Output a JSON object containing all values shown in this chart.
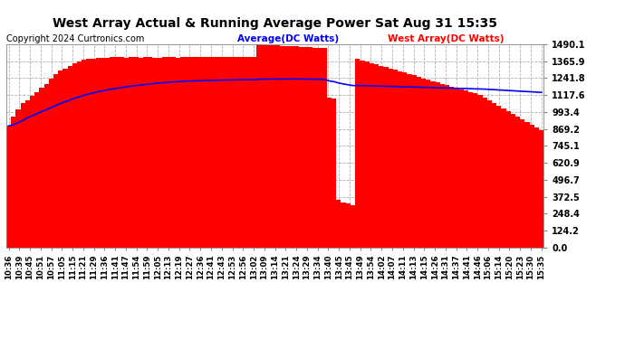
{
  "title": "West Array Actual & Running Average Power Sat Aug 31 15:35",
  "copyright": "Copyright 2024 Curtronics.com",
  "legend_average": "Average(DC Watts)",
  "legend_west": "West Array(DC Watts)",
  "ylabel_ticks": [
    0.0,
    124.2,
    248.4,
    372.5,
    496.7,
    620.9,
    745.1,
    869.2,
    993.4,
    1117.6,
    1241.8,
    1365.9,
    1490.1
  ],
  "bar_color": "#ff0000",
  "avg_line_color": "#0000ff",
  "west_label_color": "#ff0000",
  "background_color": "#ffffff",
  "grid_color": "#b0b0b0",
  "title_color": "#000000",
  "tick_labels": [
    "10:36",
    "10:39",
    "10:45",
    "10:51",
    "10:57",
    "11:05",
    "11:15",
    "11:21",
    "11:29",
    "11:36",
    "11:41",
    "11:47",
    "11:54",
    "11:59",
    "12:05",
    "12:13",
    "12:19",
    "12:27",
    "12:36",
    "12:41",
    "12:43",
    "12:53",
    "12:56",
    "13:02",
    "13:09",
    "13:14",
    "13:21",
    "13:24",
    "13:29",
    "13:34",
    "13:40",
    "13:45",
    "13:45",
    "13:49",
    "13:54",
    "14:02",
    "14:07",
    "14:11",
    "14:13",
    "14:15",
    "14:26",
    "14:31",
    "14:37",
    "14:41",
    "14:46",
    "15:06",
    "15:14",
    "15:20",
    "15:23",
    "15:30",
    "15:35"
  ],
  "power_values": [
    890,
    960,
    1010,
    1060,
    1080,
    1110,
    1140,
    1170,
    1200,
    1240,
    1270,
    1295,
    1310,
    1330,
    1350,
    1365,
    1375,
    1380,
    1385,
    1388,
    1390,
    1392,
    1393,
    1393,
    1393,
    1392,
    1393,
    1393,
    1392,
    1393,
    1393,
    1392,
    1392,
    1393,
    1393,
    1393,
    1392,
    1393,
    1393,
    1393,
    1393,
    1393,
    1393,
    1393,
    1393,
    1393,
    1393,
    1393,
    1393,
    1393,
    1393,
    1393,
    1393,
    1490,
    1488,
    1485,
    1482,
    1480,
    1478,
    1476,
    1474,
    1472,
    1470,
    1468,
    1466,
    1464,
    1462,
    1460,
    1100,
    1090,
    350,
    330,
    320,
    310,
    1380,
    1370,
    1360,
    1350,
    1340,
    1330,
    1320,
    1310,
    1300,
    1290,
    1280,
    1270,
    1260,
    1250,
    1240,
    1230,
    1220,
    1210,
    1200,
    1190,
    1180,
    1170,
    1160,
    1150,
    1140,
    1130,
    1120,
    1100,
    1080,
    1060,
    1040,
    1020,
    1000,
    980,
    960,
    940,
    920,
    900,
    880,
    860
  ],
  "avg_values": [
    890,
    900,
    915,
    930,
    950,
    965,
    980,
    995,
    1010,
    1025,
    1040,
    1055,
    1068,
    1080,
    1093,
    1105,
    1115,
    1125,
    1133,
    1141,
    1148,
    1155,
    1161,
    1167,
    1172,
    1177,
    1182,
    1186,
    1190,
    1194,
    1198,
    1202,
    1205,
    1208,
    1211,
    1213,
    1215,
    1217,
    1219,
    1220,
    1221,
    1222,
    1223,
    1224,
    1225,
    1226,
    1227,
    1227,
    1228,
    1228,
    1229,
    1229,
    1229,
    1232,
    1233,
    1233,
    1234,
    1234,
    1234,
    1234,
    1235,
    1235,
    1234,
    1234,
    1233,
    1232,
    1232,
    1231,
    1220,
    1215,
    1205,
    1198,
    1192,
    1186,
    1187,
    1186,
    1185,
    1184,
    1183,
    1182,
    1181,
    1180,
    1179,
    1178,
    1177,
    1176,
    1175,
    1174,
    1173,
    1172,
    1171,
    1170,
    1169,
    1168,
    1167,
    1166,
    1165,
    1164,
    1163,
    1162,
    1161,
    1160,
    1158,
    1156,
    1154,
    1152,
    1150,
    1148,
    1146,
    1144,
    1142,
    1140,
    1138,
    1136
  ]
}
